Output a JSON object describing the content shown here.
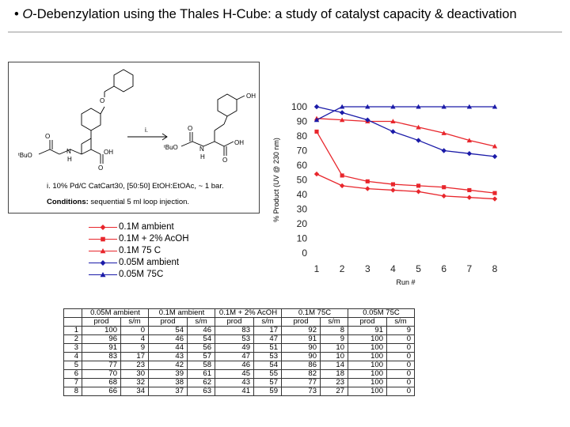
{
  "title_bullet": "•",
  "title_italic": "O",
  "title_rest": "-Debenzylation using the Thales H-Cube: a study of catalyst capacity & deactivation",
  "scheme": {
    "reagent_label": "i.",
    "conditions_line1": "i. 10% Pd/C CatCart30, [50:50] EtOH:EtOAc, ~ 1 bar.",
    "conditions_bold": "Conditions:",
    "conditions_line2": "sequential 5 ml loop injection.",
    "atom_oh": "OH",
    "atom_o": "O",
    "atom_nh": "N",
    "atom_h": "H",
    "group_tbuo": "ᵗBuO"
  },
  "legend": [
    {
      "label": "0.1M ambient",
      "color": "#e8262c",
      "marker": "diamond"
    },
    {
      "label": "0.1M + 2% AcOH",
      "color": "#e8262c",
      "marker": "square"
    },
    {
      "label": "0.1M 75 C",
      "color": "#e8262c",
      "marker": "triangle"
    },
    {
      "label": "0.05M ambient",
      "color": "#1a1aa8",
      "marker": "diamond"
    },
    {
      "label": "0.05M 75C",
      "color": "#1a1aa8",
      "marker": "triangle"
    }
  ],
  "chart_data": {
    "type": "line",
    "ylabel": "% Product (UV @ 230 nm)",
    "xlabel": "Run #",
    "x": [
      1,
      2,
      3,
      4,
      5,
      6,
      7,
      8
    ],
    "yticks": [
      0,
      10,
      20,
      30,
      40,
      50,
      60,
      70,
      80,
      90,
      100
    ],
    "ylim": [
      0,
      100
    ],
    "grid": false,
    "series": [
      {
        "name": "0.1M ambient",
        "color": "#e8262c",
        "marker": "diamond",
        "values": [
          54,
          46,
          44,
          43,
          42,
          39,
          38,
          37
        ]
      },
      {
        "name": "0.1M + 2% AcOH",
        "color": "#e8262c",
        "marker": "square",
        "values": [
          83,
          53,
          49,
          47,
          46,
          45,
          43,
          41
        ]
      },
      {
        "name": "0.1M 75 C",
        "color": "#e8262c",
        "marker": "triangle",
        "values": [
          92,
          91,
          90,
          90,
          86,
          82,
          77,
          73
        ]
      },
      {
        "name": "0.05M ambient",
        "color": "#1a1aa8",
        "marker": "diamond",
        "values": [
          100,
          96,
          91,
          83,
          77,
          70,
          68,
          66
        ]
      },
      {
        "name": "0.05M 75C",
        "color": "#1a1aa8",
        "marker": "triangle",
        "values": [
          91,
          100,
          100,
          100,
          100,
          100,
          100,
          100
        ]
      }
    ]
  },
  "table": {
    "groups": [
      "0.05M ambient",
      "0.1M ambient",
      "0.1M + 2% AcOH",
      "0.1M 75C",
      "0.05M 75C"
    ],
    "subheaders": [
      "prod",
      "s/m",
      "prod",
      "s/m",
      "prod",
      "s/m",
      "prod",
      "s/m",
      "prod",
      "s/m"
    ],
    "rows": [
      [
        "1",
        "100",
        "0",
        "54",
        "46",
        "83",
        "17",
        "92",
        "8",
        "91",
        "9"
      ],
      [
        "2",
        "96",
        "4",
        "46",
        "54",
        "53",
        "47",
        "91",
        "9",
        "100",
        "0"
      ],
      [
        "3",
        "91",
        "9",
        "44",
        "56",
        "49",
        "51",
        "90",
        "10",
        "100",
        "0"
      ],
      [
        "4",
        "83",
        "17",
        "43",
        "57",
        "47",
        "53",
        "90",
        "10",
        "100",
        "0"
      ],
      [
        "5",
        "77",
        "23",
        "42",
        "58",
        "46",
        "54",
        "86",
        "14",
        "100",
        "0"
      ],
      [
        "6",
        "70",
        "30",
        "39",
        "61",
        "45",
        "55",
        "82",
        "18",
        "100",
        "0"
      ],
      [
        "7",
        "68",
        "32",
        "38",
        "62",
        "43",
        "57",
        "77",
        "23",
        "100",
        "0"
      ],
      [
        "8",
        "66",
        "34",
        "37",
        "63",
        "41",
        "59",
        "73",
        "27",
        "100",
        "0"
      ]
    ]
  }
}
